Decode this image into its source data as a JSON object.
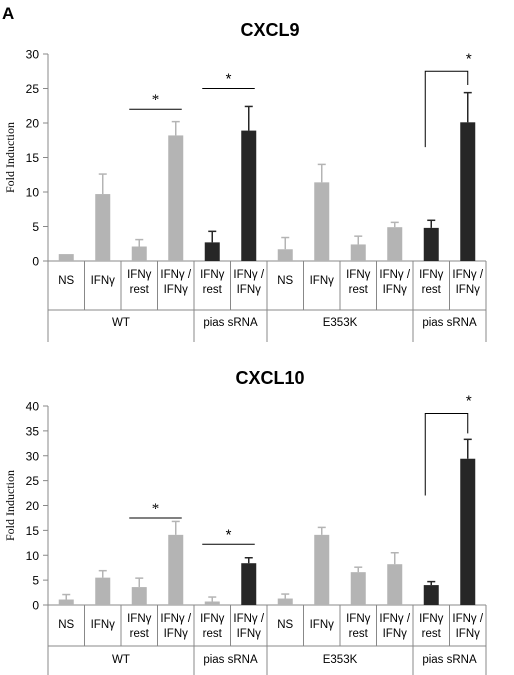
{
  "panel_label": "A",
  "chart_data": [
    {
      "type": "bar",
      "title": "CXCL9",
      "ylabel": "Fold Induction",
      "ylim": [
        0,
        30
      ],
      "yticks": [
        0,
        5,
        10,
        15,
        20,
        25,
        30
      ],
      "categories": [
        "NS",
        "IFNγ",
        "IFNγ\nrest",
        "IFNγ /\nIFNγ",
        "IFNγ\nrest",
        "IFNγ /\nIFNγ",
        "NS",
        "IFNγ",
        "IFNγ\nrest",
        "IFNγ /\nIFNγ",
        "IFNγ\nrest",
        "IFNγ /\nIFNγ"
      ],
      "groups": [
        {
          "label": "WT",
          "start": 0,
          "end": 3
        },
        {
          "label": "pias sRNA",
          "start": 4,
          "end": 5
        },
        {
          "label": "E353K",
          "start": 6,
          "end": 9
        },
        {
          "label": "pias sRNA",
          "start": 10,
          "end": 11
        }
      ],
      "values": [
        1.0,
        9.7,
        2.1,
        18.2,
        2.7,
        18.9,
        1.7,
        11.4,
        2.4,
        4.9,
        4.8,
        20.1
      ],
      "errors": [
        0.0,
        2.9,
        1.0,
        2.0,
        1.6,
        3.5,
        1.7,
        2.6,
        1.2,
        0.7,
        1.1,
        4.3
      ],
      "colors": [
        "#b4b4b4",
        "#b4b4b4",
        "#b4b4b4",
        "#b4b4b4",
        "#262626",
        "#262626",
        "#b4b4b4",
        "#b4b4b4",
        "#b4b4b4",
        "#b4b4b4",
        "#262626",
        "#262626"
      ],
      "significance": [
        {
          "from": 2,
          "to": 3,
          "y": 22,
          "label": "*",
          "style": "line",
          "font": "serif"
        },
        {
          "from": 4,
          "to": 5,
          "y": 25,
          "label": "*",
          "style": "line",
          "font": "sans"
        },
        {
          "from": 10,
          "to": 11,
          "y": 27.5,
          "label": "*",
          "style": "bracket",
          "left_end": 16.5,
          "right_end": 25.5,
          "font": "sans"
        }
      ]
    },
    {
      "type": "bar",
      "title": "CXCL10",
      "ylabel": "Fold Induction",
      "ylim": [
        0,
        40
      ],
      "yticks": [
        0,
        5,
        10,
        15,
        20,
        25,
        30,
        35,
        40
      ],
      "categories": [
        "NS",
        "IFNγ",
        "IFNγ\nrest",
        "IFNγ /\nIFNγ",
        "IFNγ\nrest",
        "IFNγ /\nIFNγ",
        "NS",
        "IFNγ",
        "IFNγ\nrest",
        "IFNγ /\nIFNγ",
        "IFNγ\nrest",
        "IFNγ /\nIFNγ"
      ],
      "groups": [
        {
          "label": "WT",
          "start": 0,
          "end": 3
        },
        {
          "label": "pias sRNA",
          "start": 4,
          "end": 5
        },
        {
          "label": "E353K",
          "start": 6,
          "end": 9
        },
        {
          "label": "pias sRNA",
          "start": 10,
          "end": 11
        }
      ],
      "values": [
        1.1,
        5.5,
        3.6,
        14.1,
        0.7,
        8.4,
        1.3,
        14.1,
        6.6,
        8.2,
        4.0,
        29.4
      ],
      "errors": [
        1.0,
        1.4,
        1.8,
        2.7,
        0.9,
        1.1,
        0.9,
        1.5,
        1.0,
        2.3,
        0.7,
        3.9
      ],
      "colors": [
        "#b4b4b4",
        "#b4b4b4",
        "#b4b4b4",
        "#b4b4b4",
        "#b4b4b4",
        "#262626",
        "#b4b4b4",
        "#b4b4b4",
        "#b4b4b4",
        "#b4b4b4",
        "#262626",
        "#262626"
      ],
      "significance": [
        {
          "from": 2,
          "to": 3,
          "y": 17.5,
          "label": "*",
          "style": "line",
          "font": "serif"
        },
        {
          "from": 4,
          "to": 5,
          "y": 12.2,
          "label": "*",
          "style": "line",
          "font": "sans"
        },
        {
          "from": 10,
          "to": 11,
          "y": 38.5,
          "label": "*",
          "style": "bracket",
          "left_end": 22,
          "right_end": 34.5,
          "font": "sans"
        }
      ]
    }
  ]
}
